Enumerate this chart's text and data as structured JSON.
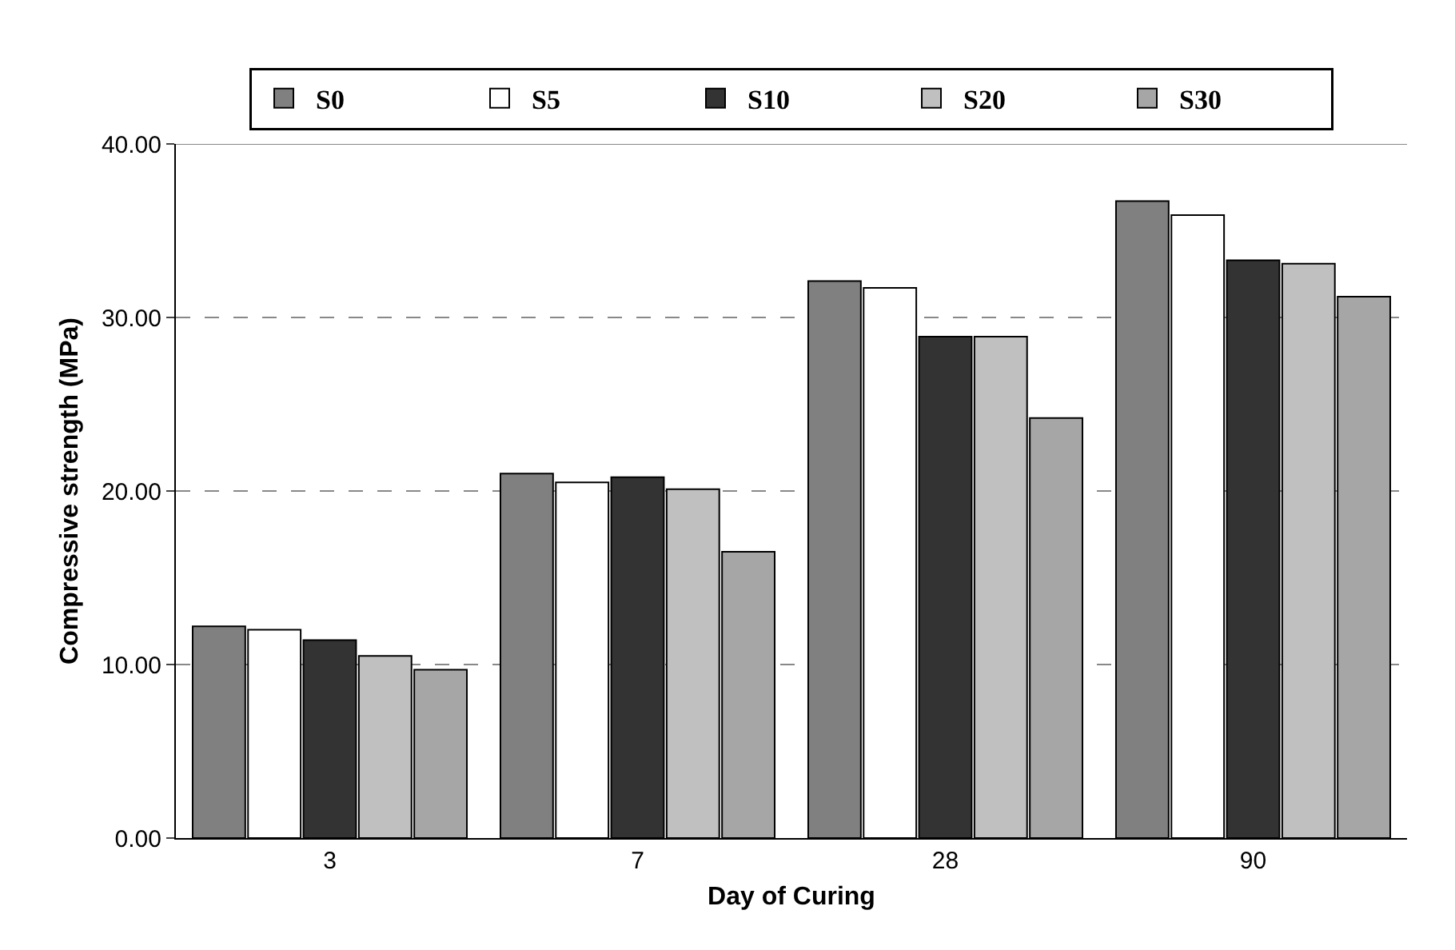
{
  "chart_data": {
    "type": "bar",
    "xlabel": "Day of Curing",
    "ylabel": "Compressive strength (MPa)",
    "categories": [
      "3",
      "7",
      "28",
      "90"
    ],
    "series": [
      {
        "name": "S0",
        "color": "#808080",
        "values": [
          12.2,
          21.0,
          32.1,
          36.7
        ]
      },
      {
        "name": "S5",
        "color": "#ffffff",
        "values": [
          12.0,
          20.5,
          31.7,
          35.9
        ]
      },
      {
        "name": "S10",
        "color": "#333333",
        "values": [
          11.4,
          20.8,
          28.9,
          33.3
        ]
      },
      {
        "name": "S20",
        "color": "#c0c0c0",
        "values": [
          10.5,
          20.1,
          28.9,
          33.1
        ]
      },
      {
        "name": "S30",
        "color": "#a6a6a6",
        "values": [
          9.7,
          16.5,
          24.2,
          31.2
        ]
      }
    ],
    "ylim": [
      0,
      40
    ],
    "yticks": [
      {
        "value": 0,
        "label": "0.00"
      },
      {
        "value": 10,
        "label": "10.00"
      },
      {
        "value": 20,
        "label": "20.00"
      },
      {
        "value": 30,
        "label": "30.00"
      },
      {
        "value": 40,
        "label": "40.00"
      }
    ],
    "grid": "y",
    "legend": "top"
  }
}
